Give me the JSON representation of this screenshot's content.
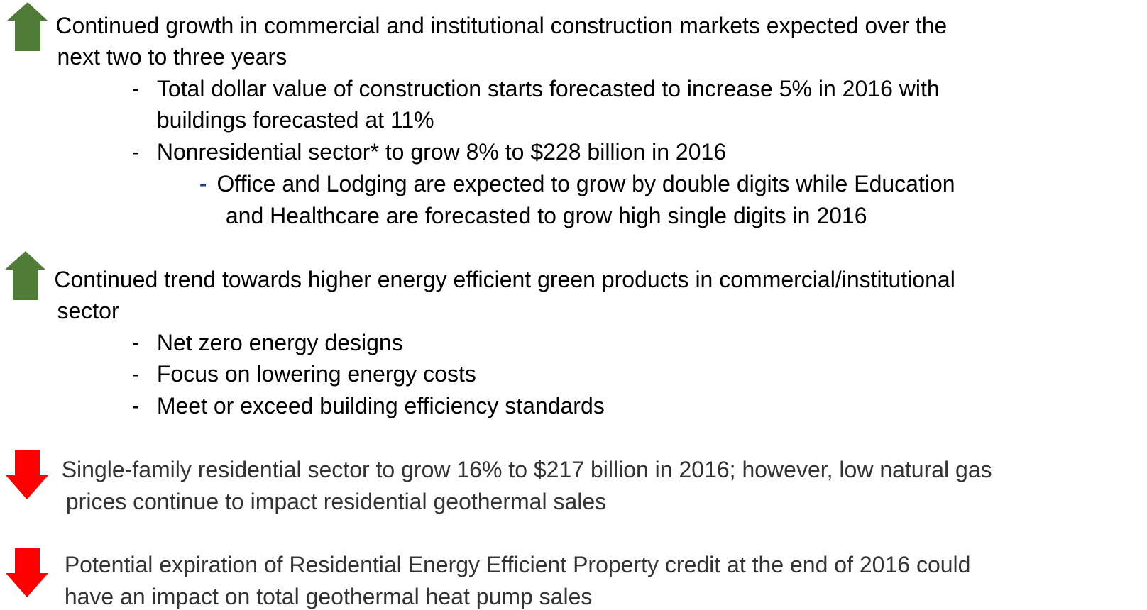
{
  "items": [
    {
      "lines": [
        "Continued growth in commercial and institutional construction markets expected over the",
        "next two to three years"
      ],
      "subitems": [
        {
          "lines": [
            "Total dollar value of construction starts forecasted to increase 5% in 2016 with",
            "buildings forecasted at 11%"
          ],
          "subitems": []
        },
        {
          "lines": [
            "Nonresidential sector* to grow 8% to $228 billion in 2016"
          ],
          "subitems": [
            {
              "lines": [
                "Office and Lodging are expected to grow by double digits while Education",
                "and Healthcare are forecasted to grow high single digits in 2016"
              ]
            }
          ]
        }
      ]
    },
    {
      "lines": [
        "Continued trend towards higher energy efficient green products in commercial/institutional",
        "sector"
      ],
      "subitems": [
        {
          "lines": [
            "Net zero energy designs"
          ],
          "subitems": []
        },
        {
          "lines": [
            "Focus on lowering energy costs"
          ],
          "subitems": []
        },
        {
          "lines": [
            "Meet or exceed building efficiency standards"
          ],
          "subitems": []
        }
      ]
    },
    {
      "lines": [
        "Single-family residential sector to grow 16% to $217 billion in 2016; however, low natural gas",
        "prices continue to impact residential geothermal sales"
      ],
      "subitems": []
    },
    {
      "lines": [
        "Potential expiration of Residential Energy Efficient Property credit at the end of 2016 could",
        "have an impact on total geothermal heat pump sales"
      ],
      "subitems": []
    }
  ]
}
